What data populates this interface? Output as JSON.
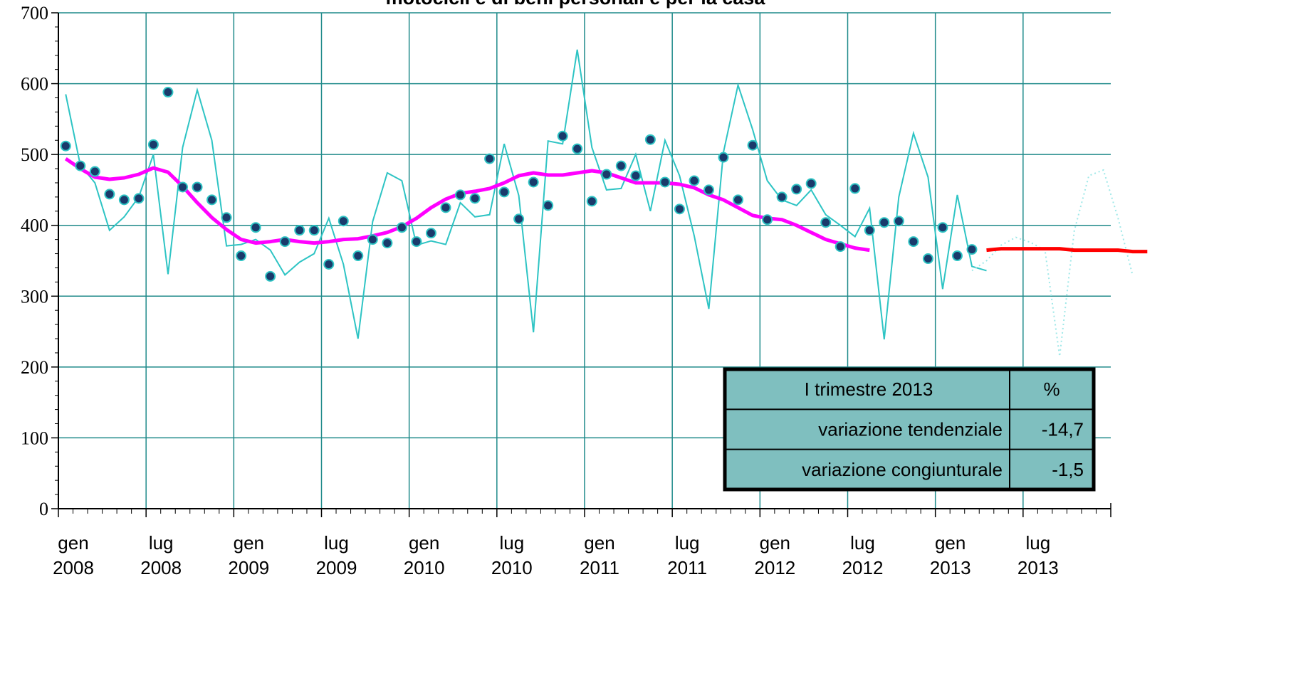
{
  "chart_data": {
    "type": "line",
    "title": "motocicli e di beni personali e per la casa",
    "ylim": [
      0,
      700
    ],
    "yticks": [
      "0",
      "100",
      "200",
      "300",
      "400",
      "500",
      "600",
      "700"
    ],
    "xticks": [
      {
        "month": "gen",
        "year": "2008"
      },
      {
        "month": "lug",
        "year": "2008"
      },
      {
        "month": "gen",
        "year": "2009"
      },
      {
        "month": "lug",
        "year": "2009"
      },
      {
        "month": "gen",
        "year": "2010"
      },
      {
        "month": "lug",
        "year": "2010"
      },
      {
        "month": "gen",
        "year": "2011"
      },
      {
        "month": "lug",
        "year": "2011"
      },
      {
        "month": "gen",
        "year": "2012"
      },
      {
        "month": "lug",
        "year": "2012"
      },
      {
        "month": "gen",
        "year": "2013"
      },
      {
        "month": "lug",
        "year": "2013"
      }
    ],
    "x_range": [
      "2008-01",
      "2013-12"
    ],
    "grid": true,
    "colors": {
      "raw": "#2ec4c4",
      "seasonal": "#1a3a6b",
      "trend": "#ff00ff",
      "forecast": "#ff0000",
      "forecast_raw": "#9fe8e8",
      "grid": "#1f8a8a",
      "table_bg": "#7fbfbf"
    },
    "series": [
      {
        "role": "raw",
        "style": "line",
        "start": "2008-01",
        "values": [
          585,
          485,
          460,
          393,
          412,
          440,
          500,
          331,
          510,
          591,
          520,
          371,
          373,
          380,
          365,
          330,
          348,
          360,
          410,
          345,
          240,
          405,
          474,
          463,
          372,
          378,
          373,
          432,
          412,
          415,
          515,
          442,
          249,
          519,
          515,
          648,
          510,
          450,
          452,
          500,
          420,
          520,
          470,
          385,
          282,
          503,
          598,
          535,
          463,
          436,
          428,
          450,
          415,
          400,
          384,
          424,
          239,
          440,
          530,
          468,
          310,
          443,
          342,
          336
        ]
      },
      {
        "role": "seasonal",
        "style": "markers",
        "start": "2008-01",
        "values": [
          512,
          484,
          476,
          444,
          436,
          438,
          514,
          588,
          454,
          454,
          436,
          411,
          357,
          397,
          328,
          377,
          393,
          393,
          345,
          406,
          357,
          380,
          375,
          397,
          377,
          389,
          425,
          443,
          438,
          494,
          447,
          409,
          461,
          428,
          526,
          508,
          434,
          472,
          484,
          470,
          521,
          461,
          423,
          463,
          450,
          496,
          436,
          513,
          408,
          440,
          451,
          459,
          404,
          370,
          452,
          393,
          404,
          406,
          377,
          353,
          397,
          357,
          366
        ]
      },
      {
        "role": "trend",
        "style": "line",
        "start": "2008-01",
        "values": [
          494,
          480,
          468,
          465,
          467,
          472,
          481,
          475,
          455,
          432,
          411,
          394,
          380,
          375,
          377,
          380,
          377,
          375,
          377,
          380,
          381,
          385,
          390,
          398,
          410,
          425,
          437,
          445,
          448,
          452,
          460,
          470,
          474,
          471,
          471,
          474,
          477,
          474,
          467,
          460,
          460,
          460,
          458,
          453,
          443,
          436,
          425,
          414,
          410,
          408,
          400,
          390,
          380,
          374,
          368,
          365
        ]
      },
      {
        "role": "forecast",
        "style": "line",
        "start": "2013-04",
        "values": [
          365,
          367,
          367,
          367,
          367,
          367,
          365,
          365,
          365,
          365,
          363,
          363
        ]
      },
      {
        "role": "forecast_raw",
        "style": "dotted",
        "start": "2013-03",
        "values": [
          336,
          350,
          372,
          383,
          376,
          365,
          215,
          392,
          470,
          478,
          410,
          329
        ]
      }
    ],
    "table": {
      "header": "I trimestre 2013",
      "header_unit": "%",
      "rows": [
        {
          "label": "variazione tendenziale",
          "value": "-14,7"
        },
        {
          "label": "variazione congiunturale",
          "value": "-1,5"
        }
      ]
    }
  }
}
